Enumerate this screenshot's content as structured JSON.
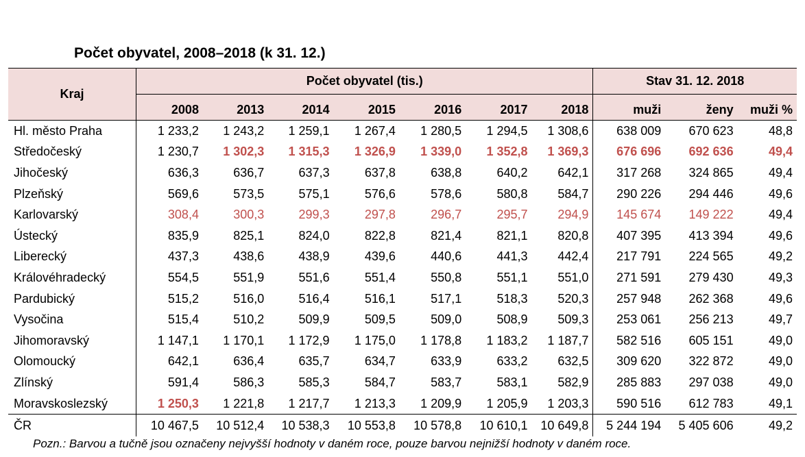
{
  "title": "Počet obyvatel, 2008–2018 (k 31. 12.)",
  "header": {
    "kraj": "Kraj",
    "population_group": "Počet obyvatel (tis.)",
    "state_group": "Stav 31. 12. 2018",
    "years": [
      "2008",
      "2013",
      "2014",
      "2015",
      "2016",
      "2017",
      "2018"
    ],
    "state_cols": [
      "muži",
      "ženy",
      "muži %"
    ]
  },
  "rows": [
    {
      "region": "Hl. město Praha",
      "values": [
        "1 233,2",
        "1 243,2",
        "1 259,1",
        "1 267,4",
        "1 280,5",
        "1 294,5",
        "1 308,6"
      ],
      "state": [
        "638 009",
        "670 623",
        "48,8"
      ]
    },
    {
      "region": "Středočeský",
      "values": [
        "1 230,7",
        "1 302,3",
        "1 315,3",
        "1 326,9",
        "1 339,0",
        "1 352,8",
        "1 369,3"
      ],
      "state": [
        "676 696",
        "692 636",
        "49,4"
      ]
    },
    {
      "region": "Jihočeský",
      "values": [
        "636,3",
        "636,7",
        "637,3",
        "637,8",
        "638,8",
        "640,2",
        "642,1"
      ],
      "state": [
        "317 268",
        "324 865",
        "49,4"
      ]
    },
    {
      "region": "Plzeňský",
      "values": [
        "569,6",
        "573,5",
        "575,1",
        "576,6",
        "578,6",
        "580,8",
        "584,7"
      ],
      "state": [
        "290 226",
        "294 446",
        "49,6"
      ]
    },
    {
      "region": "Karlovarský",
      "values": [
        "308,4",
        "300,3",
        "299,3",
        "297,8",
        "296,7",
        "295,7",
        "294,9"
      ],
      "state": [
        "145 674",
        "149 222",
        "49,4"
      ]
    },
    {
      "region": "Ústecký",
      "values": [
        "835,9",
        "825,1",
        "824,0",
        "822,8",
        "821,4",
        "821,1",
        "820,8"
      ],
      "state": [
        "407 395",
        "413 394",
        "49,6"
      ]
    },
    {
      "region": "Liberecký",
      "values": [
        "437,3",
        "438,6",
        "438,9",
        "439,6",
        "440,6",
        "441,3",
        "442,4"
      ],
      "state": [
        "217 791",
        "224 565",
        "49,2"
      ]
    },
    {
      "region": "Královéhradecký",
      "values": [
        "554,5",
        "551,9",
        "551,6",
        "551,4",
        "550,8",
        "551,1",
        "551,0"
      ],
      "state": [
        "271 591",
        "279 430",
        "49,3"
      ]
    },
    {
      "region": "Pardubický",
      "values": [
        "515,2",
        "516,0",
        "516,4",
        "516,1",
        "517,1",
        "518,3",
        "520,3"
      ],
      "state": [
        "257 948",
        "262 368",
        "49,6"
      ]
    },
    {
      "region": "Vysočina",
      "values": [
        "515,4",
        "510,2",
        "509,9",
        "509,5",
        "509,0",
        "508,9",
        "509,3"
      ],
      "state": [
        "253 061",
        "256 213",
        "49,7"
      ]
    },
    {
      "region": "Jihomoravský",
      "values": [
        "1 147,1",
        "1 170,1",
        "1 172,9",
        "1 175,0",
        "1 178,8",
        "1 183,2",
        "1 187,7"
      ],
      "state": [
        "582 516",
        "605 151",
        "49,0"
      ]
    },
    {
      "region": "Olomoucký",
      "values": [
        "642,1",
        "636,4",
        "635,7",
        "634,7",
        "633,9",
        "633,2",
        "632,5"
      ],
      "state": [
        "309 620",
        "322 872",
        "49,0"
      ]
    },
    {
      "region": "Zlínský",
      "values": [
        "591,4",
        "586,3",
        "585,3",
        "584,7",
        "583,7",
        "583,1",
        "582,9"
      ],
      "state": [
        "285 883",
        "297 038",
        "49,0"
      ]
    },
    {
      "region": "Moravskoslezský",
      "values": [
        "1 250,3",
        "1 221,8",
        "1 217,7",
        "1 213,3",
        "1 209,9",
        "1 205,9",
        "1 203,3"
      ],
      "state": [
        "590 516",
        "612 783",
        "49,1"
      ]
    }
  ],
  "total": {
    "region": "ČR",
    "values": [
      "10 467,5",
      "10 512,4",
      "10 538,3",
      "10 553,8",
      "10 578,8",
      "10 610,1",
      "10 649,8"
    ],
    "state": [
      "5 244 194",
      "5 405 606",
      "49,2"
    ]
  },
  "highlight_color": "#c0504d",
  "highlights": {
    "bold_max": [
      [
        1,
        1
      ],
      [
        1,
        2
      ],
      [
        1,
        3
      ],
      [
        1,
        4
      ],
      [
        1,
        5
      ],
      [
        1,
        6
      ],
      [
        1,
        7
      ],
      [
        1,
        8
      ],
      [
        1,
        9
      ],
      [
        13,
        0
      ],
      [
        9,
        10
      ]
    ],
    "min": [
      [
        4,
        0
      ],
      [
        4,
        1
      ],
      [
        4,
        2
      ],
      [
        4,
        3
      ],
      [
        4,
        4
      ],
      [
        4,
        5
      ],
      [
        4,
        6
      ],
      [
        4,
        7
      ],
      [
        4,
        8
      ],
      [
        0,
        10
      ]
    ]
  },
  "note": "Pozn.: Barvou a tučně jsou označeny nejvyšší hodnoty v daném roce, pouze barvou nejnižší hodnoty v daném roce."
}
